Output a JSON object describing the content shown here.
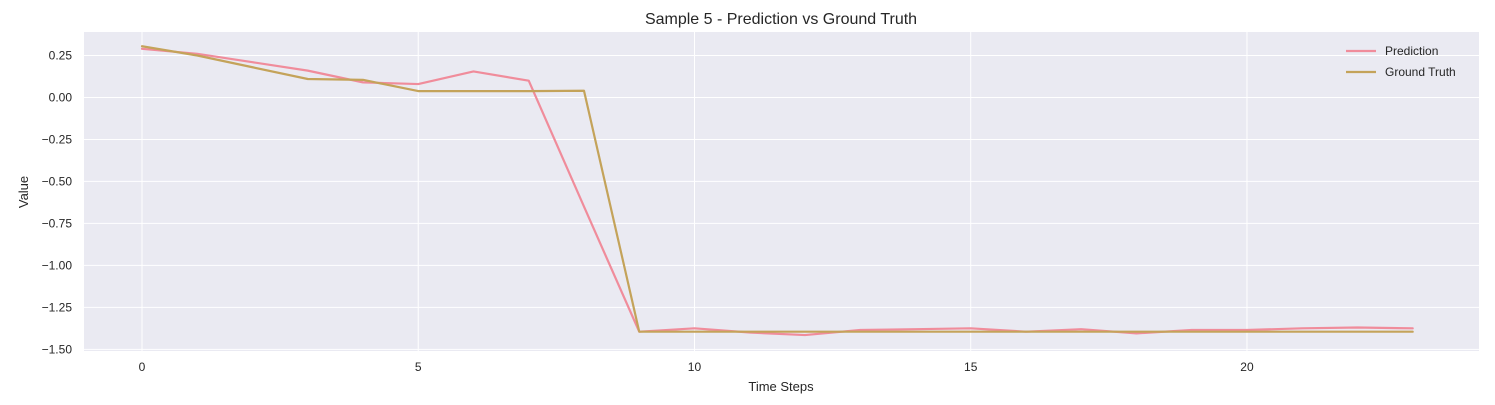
{
  "chart_data": {
    "type": "line",
    "title": "Sample 5 - Prediction vs Ground Truth",
    "xlabel": "Time Steps",
    "ylabel": "Value",
    "xlim": [
      -1.05,
      24.2
    ],
    "ylim": [
      -1.51,
      0.39
    ],
    "xticks": [
      0,
      5,
      10,
      15,
      20
    ],
    "xtick_labels": [
      "0",
      "5",
      "10",
      "15",
      "20"
    ],
    "yticks": [
      0.25,
      0.0,
      -0.25,
      -0.5,
      -0.75,
      -1.0,
      -1.25,
      -1.5
    ],
    "ytick_labels": [
      "0.25",
      "0.00",
      "−0.25",
      "−0.50",
      "−0.75",
      "−1.00",
      "−1.25",
      "−1.50"
    ],
    "grid": true,
    "legend_position": "top-right",
    "background_color": "#eaeaf2",
    "series": [
      {
        "name": "Prediction",
        "color": "#f08c9b",
        "x": [
          0,
          1,
          2,
          3,
          4,
          5,
          6,
          7,
          8,
          9,
          10,
          11,
          12,
          13,
          14,
          15,
          16,
          17,
          18,
          19,
          20,
          21,
          22,
          23
        ],
        "values": [
          0.29,
          0.26,
          0.21,
          0.16,
          0.09,
          0.08,
          0.155,
          0.1,
          -0.65,
          -1.395,
          -1.375,
          -1.4,
          -1.415,
          -1.385,
          -1.38,
          -1.375,
          -1.395,
          -1.38,
          -1.405,
          -1.385,
          -1.385,
          -1.375,
          -1.37,
          -1.375
        ]
      },
      {
        "name": "Ground Truth",
        "color": "#c4a35a",
        "x": [
          0,
          1,
          2,
          3,
          4,
          5,
          6,
          7,
          8,
          9,
          10,
          11,
          12,
          13,
          14,
          15,
          16,
          17,
          18,
          19,
          20,
          21,
          22,
          23
        ],
        "values": [
          0.305,
          0.25,
          0.18,
          0.11,
          0.105,
          0.038,
          0.038,
          0.038,
          0.04,
          -1.395,
          -1.395,
          -1.395,
          -1.395,
          -1.395,
          -1.395,
          -1.395,
          -1.395,
          -1.395,
          -1.395,
          -1.395,
          -1.395,
          -1.395,
          -1.395,
          -1.395
        ]
      }
    ]
  }
}
